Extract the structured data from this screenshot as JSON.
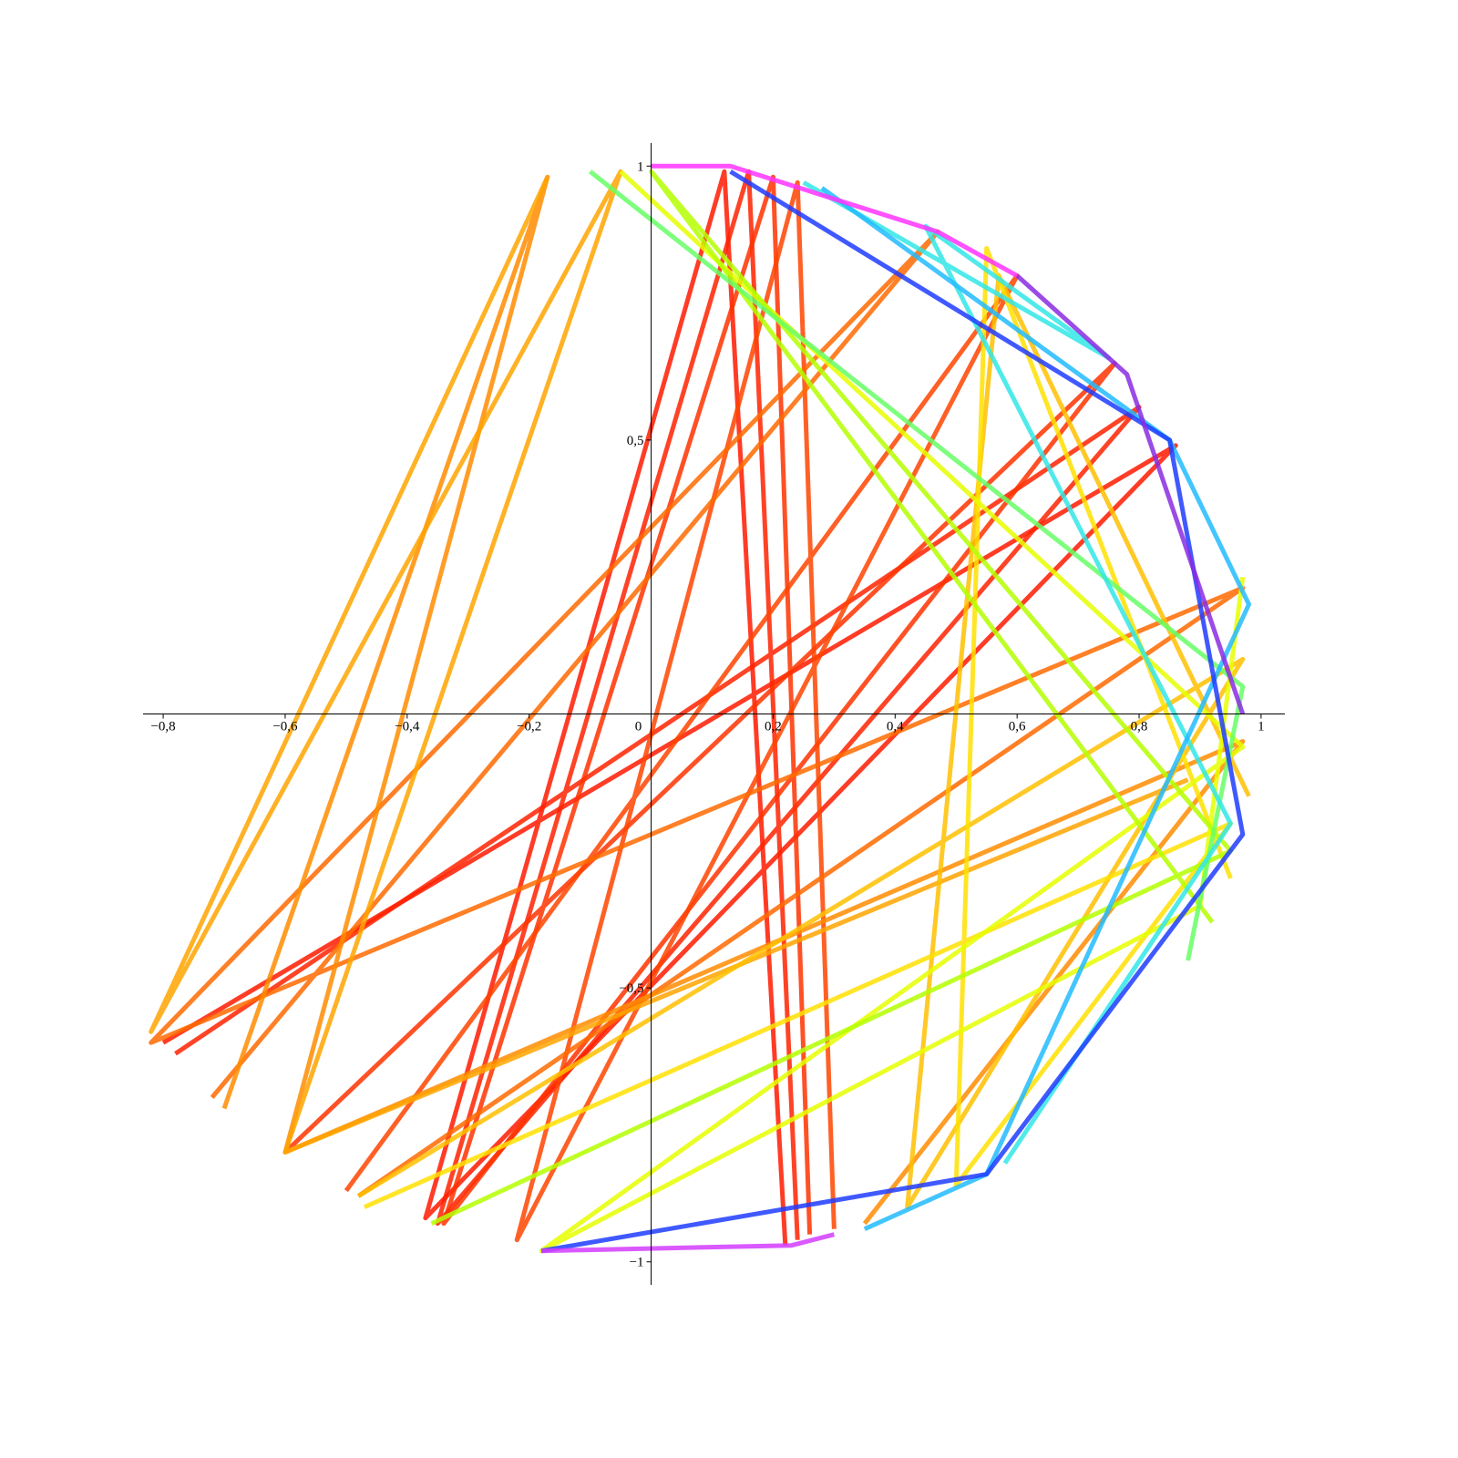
{
  "chart_data": {
    "type": "line",
    "xlim": [
      -0.833,
      1.039
    ],
    "ylim": [
      -1.042,
      1.042
    ],
    "xticks": [
      {
        "value": -0.8,
        "label": "−0,8"
      },
      {
        "value": -0.6,
        "label": "−0,6"
      },
      {
        "value": -0.4,
        "label": "−0,4"
      },
      {
        "value": -0.2,
        "label": "−0,2"
      },
      0,
      {
        "value": 0.2,
        "label": "0,2"
      },
      {
        "value": 0.4,
        "label": "0,4"
      },
      {
        "value": 0.6,
        "label": "0,6"
      },
      {
        "value": 0.8,
        "label": "0,8"
      },
      1
    ],
    "yticks": [
      {
        "value": -1,
        "label": "−1"
      },
      {
        "value": -0.5,
        "label": "−0,5"
      },
      {
        "value": 0.5,
        "label": "0,5"
      },
      1
    ],
    "series": [
      {
        "color": "#ff1a00",
        "x": [
          -0.8,
          0.86,
          -0.37,
          0.12,
          0.22
        ],
        "values": [
          -0.6,
          0.49,
          -0.92,
          0.99,
          -0.97
        ]
      },
      {
        "color": "#ff2200",
        "x": [
          -0.78,
          0.8,
          -0.35,
          0.16,
          0.24
        ],
        "values": [
          -0.62,
          0.56,
          -0.93,
          0.99,
          -0.96
        ]
      },
      {
        "color": "#ff3300",
        "x": [
          -0.6,
          0.76,
          -0.34,
          0.2,
          0.26
        ],
        "values": [
          -0.8,
          0.64,
          -0.93,
          0.98,
          -0.95
        ]
      },
      {
        "color": "#ff4400",
        "x": [
          -0.5,
          0.6,
          -0.22,
          0.24,
          0.3
        ],
        "values": [
          -0.87,
          0.8,
          -0.96,
          0.97,
          -0.94
        ]
      },
      {
        "color": "#ff6a00",
        "x": [
          -0.72,
          0.47,
          -0.82,
          0.97,
          -0.48
        ],
        "values": [
          -0.7,
          0.88,
          -0.6,
          0.23,
          -0.88
        ]
      },
      {
        "color": "#ff8c00",
        "x": [
          -0.7,
          -0.17,
          -0.6,
          0.97,
          0.35
        ],
        "values": [
          -0.72,
          0.98,
          -0.8,
          -0.05,
          -0.93
        ]
      },
      {
        "color": "#ffa500",
        "x": [
          -0.17,
          -0.82,
          -0.05,
          -0.6,
          0.88
        ],
        "values": [
          0.98,
          -0.58,
          0.99,
          -0.8,
          -0.12
        ]
      },
      {
        "color": "#ffbf00",
        "x": [
          -0.48,
          0.97,
          0.42,
          0.57,
          0.98
        ],
        "values": [
          -0.88,
          0.1,
          -0.9,
          0.8,
          -0.15
        ]
      },
      {
        "color": "#ffe000",
        "x": [
          -0.47,
          0.95,
          0.5,
          0.55,
          0.95
        ],
        "values": [
          -0.9,
          -0.2,
          -0.86,
          0.85,
          -0.3
        ]
      },
      {
        "color": "#e6ff00",
        "x": [
          -0.05,
          0.97,
          -0.18,
          0.9,
          0.97
        ],
        "values": [
          0.99,
          -0.06,
          -0.98,
          -0.35,
          0.25
        ]
      },
      {
        "color": "#b4ff00",
        "x": [
          -0.36,
          0.95,
          0.0,
          0.92
        ],
        "values": [
          -0.93,
          -0.25,
          0.99,
          -0.38
        ]
      },
      {
        "color": "#66ff66",
        "x": [
          -0.1,
          0.97,
          0.88
        ],
        "values": [
          0.99,
          0.05,
          -0.45
        ]
      },
      {
        "color": "#33e6e6",
        "x": [
          0.25,
          0.75,
          0.45,
          0.95,
          0.58
        ],
        "values": [
          0.97,
          0.65,
          0.89,
          -0.2,
          -0.82
        ]
      },
      {
        "color": "#22bbff",
        "x": [
          0.28,
          0.85,
          0.98,
          0.55,
          0.35
        ],
        "values": [
          0.96,
          0.5,
          0.2,
          -0.84,
          -0.94
        ]
      },
      {
        "color": "#1e3cff",
        "x": [
          0.13,
          0.85,
          0.97,
          0.55,
          -0.18
        ],
        "values": [
          0.99,
          0.5,
          -0.22,
          -0.84,
          -0.98
        ]
      },
      {
        "color": "#8a2be2",
        "x": [
          0.6,
          0.78,
          0.97
        ],
        "values": [
          0.8,
          0.62,
          0.0
        ]
      },
      {
        "color": "#d43cff",
        "x": [
          -0.18,
          0.23,
          0.3
        ],
        "values": [
          -0.98,
          -0.97,
          -0.95
        ]
      },
      {
        "color": "#ff33ff",
        "x": [
          0.0,
          0.13,
          0.47,
          0.6
        ],
        "values": [
          1,
          1,
          0.88,
          0.8
        ]
      }
    ]
  }
}
